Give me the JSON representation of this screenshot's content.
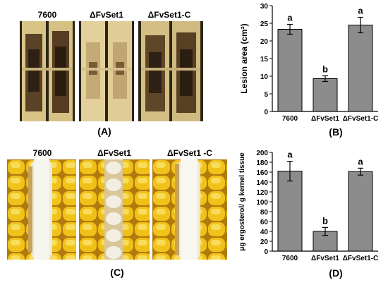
{
  "panel_a": {
    "label": "(A)",
    "strains": [
      "7600",
      "ΔFvSet1",
      "ΔFvSet1-C"
    ]
  },
  "panel_c": {
    "label": "(C)",
    "strains": [
      "7600",
      "ΔFvSet1",
      "ΔFvSet1 -C"
    ]
  },
  "chart_data": [
    {
      "type": "bar",
      "panel": "(B)",
      "categories": [
        "7600",
        "ΔFvSet1",
        "ΔFvSet1-C"
      ],
      "values": [
        23.3,
        9.3,
        24.5
      ],
      "errors": [
        1.4,
        0.8,
        2.2
      ],
      "significance": [
        "a",
        "b",
        "a"
      ],
      "ylabel": "Lesion area (cm²)",
      "ylim": [
        0,
        30
      ],
      "yticks": [
        0,
        5,
        10,
        15,
        20,
        25,
        30
      ],
      "bar_color": "#8c8c8c"
    },
    {
      "type": "bar",
      "panel": "(D)",
      "categories": [
        "7600",
        "ΔFvSet1",
        "ΔFvSet1-C"
      ],
      "values": [
        162,
        40,
        161
      ],
      "errors": [
        20,
        8,
        7
      ],
      "significance": [
        "a",
        "b",
        "a"
      ],
      "ylabel": "μg ergosterol/ g kernel tissue",
      "ylim": [
        0,
        200
      ],
      "yticks": [
        0,
        20,
        40,
        60,
        80,
        100,
        120,
        140,
        160,
        180,
        200
      ],
      "bar_color": "#8c8c8c"
    }
  ]
}
